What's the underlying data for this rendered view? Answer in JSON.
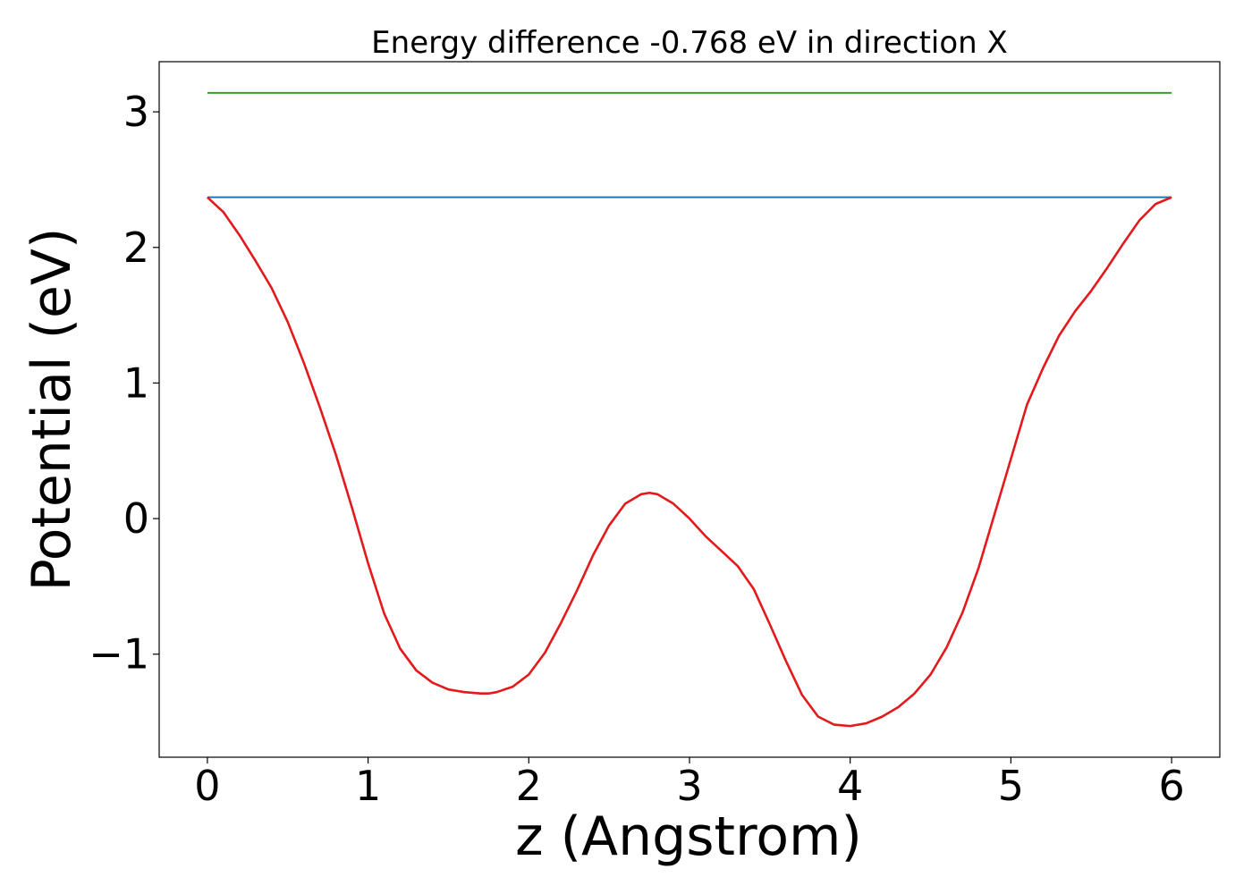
{
  "chart_data": {
    "type": "line",
    "title": "Energy difference -0.768 eV in direction X",
    "xlabel": "z (Angstrom)",
    "ylabel": "Potential (eV)",
    "xlim": [
      -0.3,
      6.3
    ],
    "ylim": [
      -1.76,
      3.37
    ],
    "xticks": [
      0,
      1,
      2,
      3,
      4,
      5,
      6
    ],
    "yticks": [
      -1,
      0,
      1,
      2,
      3
    ],
    "ytick_labels": [
      "−1",
      "0",
      "1",
      "2",
      "3"
    ],
    "grid": false,
    "colors": {
      "potential": "#e31a1c",
      "level_blue": "#1f78b4",
      "level_green": "#33a02c"
    },
    "series": [
      {
        "color": "#e31a1c",
        "x": [
          0,
          0.1,
          0.2,
          0.3,
          0.4,
          0.5,
          0.6,
          0.7,
          0.8,
          0.9,
          1.0,
          1.1,
          1.2,
          1.3,
          1.4,
          1.5,
          1.6,
          1.7,
          1.75,
          1.8,
          1.9,
          2.0,
          2.1,
          2.2,
          2.3,
          2.4,
          2.5,
          2.6,
          2.7,
          2.75,
          2.8,
          2.9,
          3.0,
          3.1,
          3.2,
          3.3,
          3.4,
          3.5,
          3.6,
          3.7,
          3.8,
          3.9,
          4.0,
          4.1,
          4.2,
          4.3,
          4.4,
          4.5,
          4.6,
          4.7,
          4.8,
          4.9,
          5.0,
          5.1,
          5.2,
          5.3,
          5.4,
          5.5,
          5.6,
          5.7,
          5.8,
          5.9,
          6.0
        ],
        "y": [
          2.37,
          2.26,
          2.09,
          1.9,
          1.7,
          1.45,
          1.15,
          0.82,
          0.47,
          0.08,
          -0.33,
          -0.7,
          -0.96,
          -1.12,
          -1.21,
          -1.26,
          -1.28,
          -1.29,
          -1.29,
          -1.28,
          -1.24,
          -1.15,
          -0.99,
          -0.77,
          -0.53,
          -0.27,
          -0.05,
          0.11,
          0.18,
          0.19,
          0.18,
          0.11,
          0.0,
          -0.13,
          -0.24,
          -0.35,
          -0.52,
          -0.78,
          -1.05,
          -1.3,
          -1.46,
          -1.52,
          -1.53,
          -1.51,
          -1.46,
          -1.39,
          -1.29,
          -1.15,
          -0.95,
          -0.69,
          -0.36,
          0.04,
          0.44,
          0.84,
          1.11,
          1.35,
          1.53,
          1.68,
          1.85,
          2.03,
          2.2,
          2.32,
          2.37
        ]
      },
      {
        "color": "#1f78b4",
        "x": [
          0,
          6
        ],
        "y": [
          2.37,
          2.37
        ]
      },
      {
        "color": "#33a02c",
        "x": [
          0,
          6
        ],
        "y": [
          3.14,
          3.14
        ]
      }
    ]
  }
}
